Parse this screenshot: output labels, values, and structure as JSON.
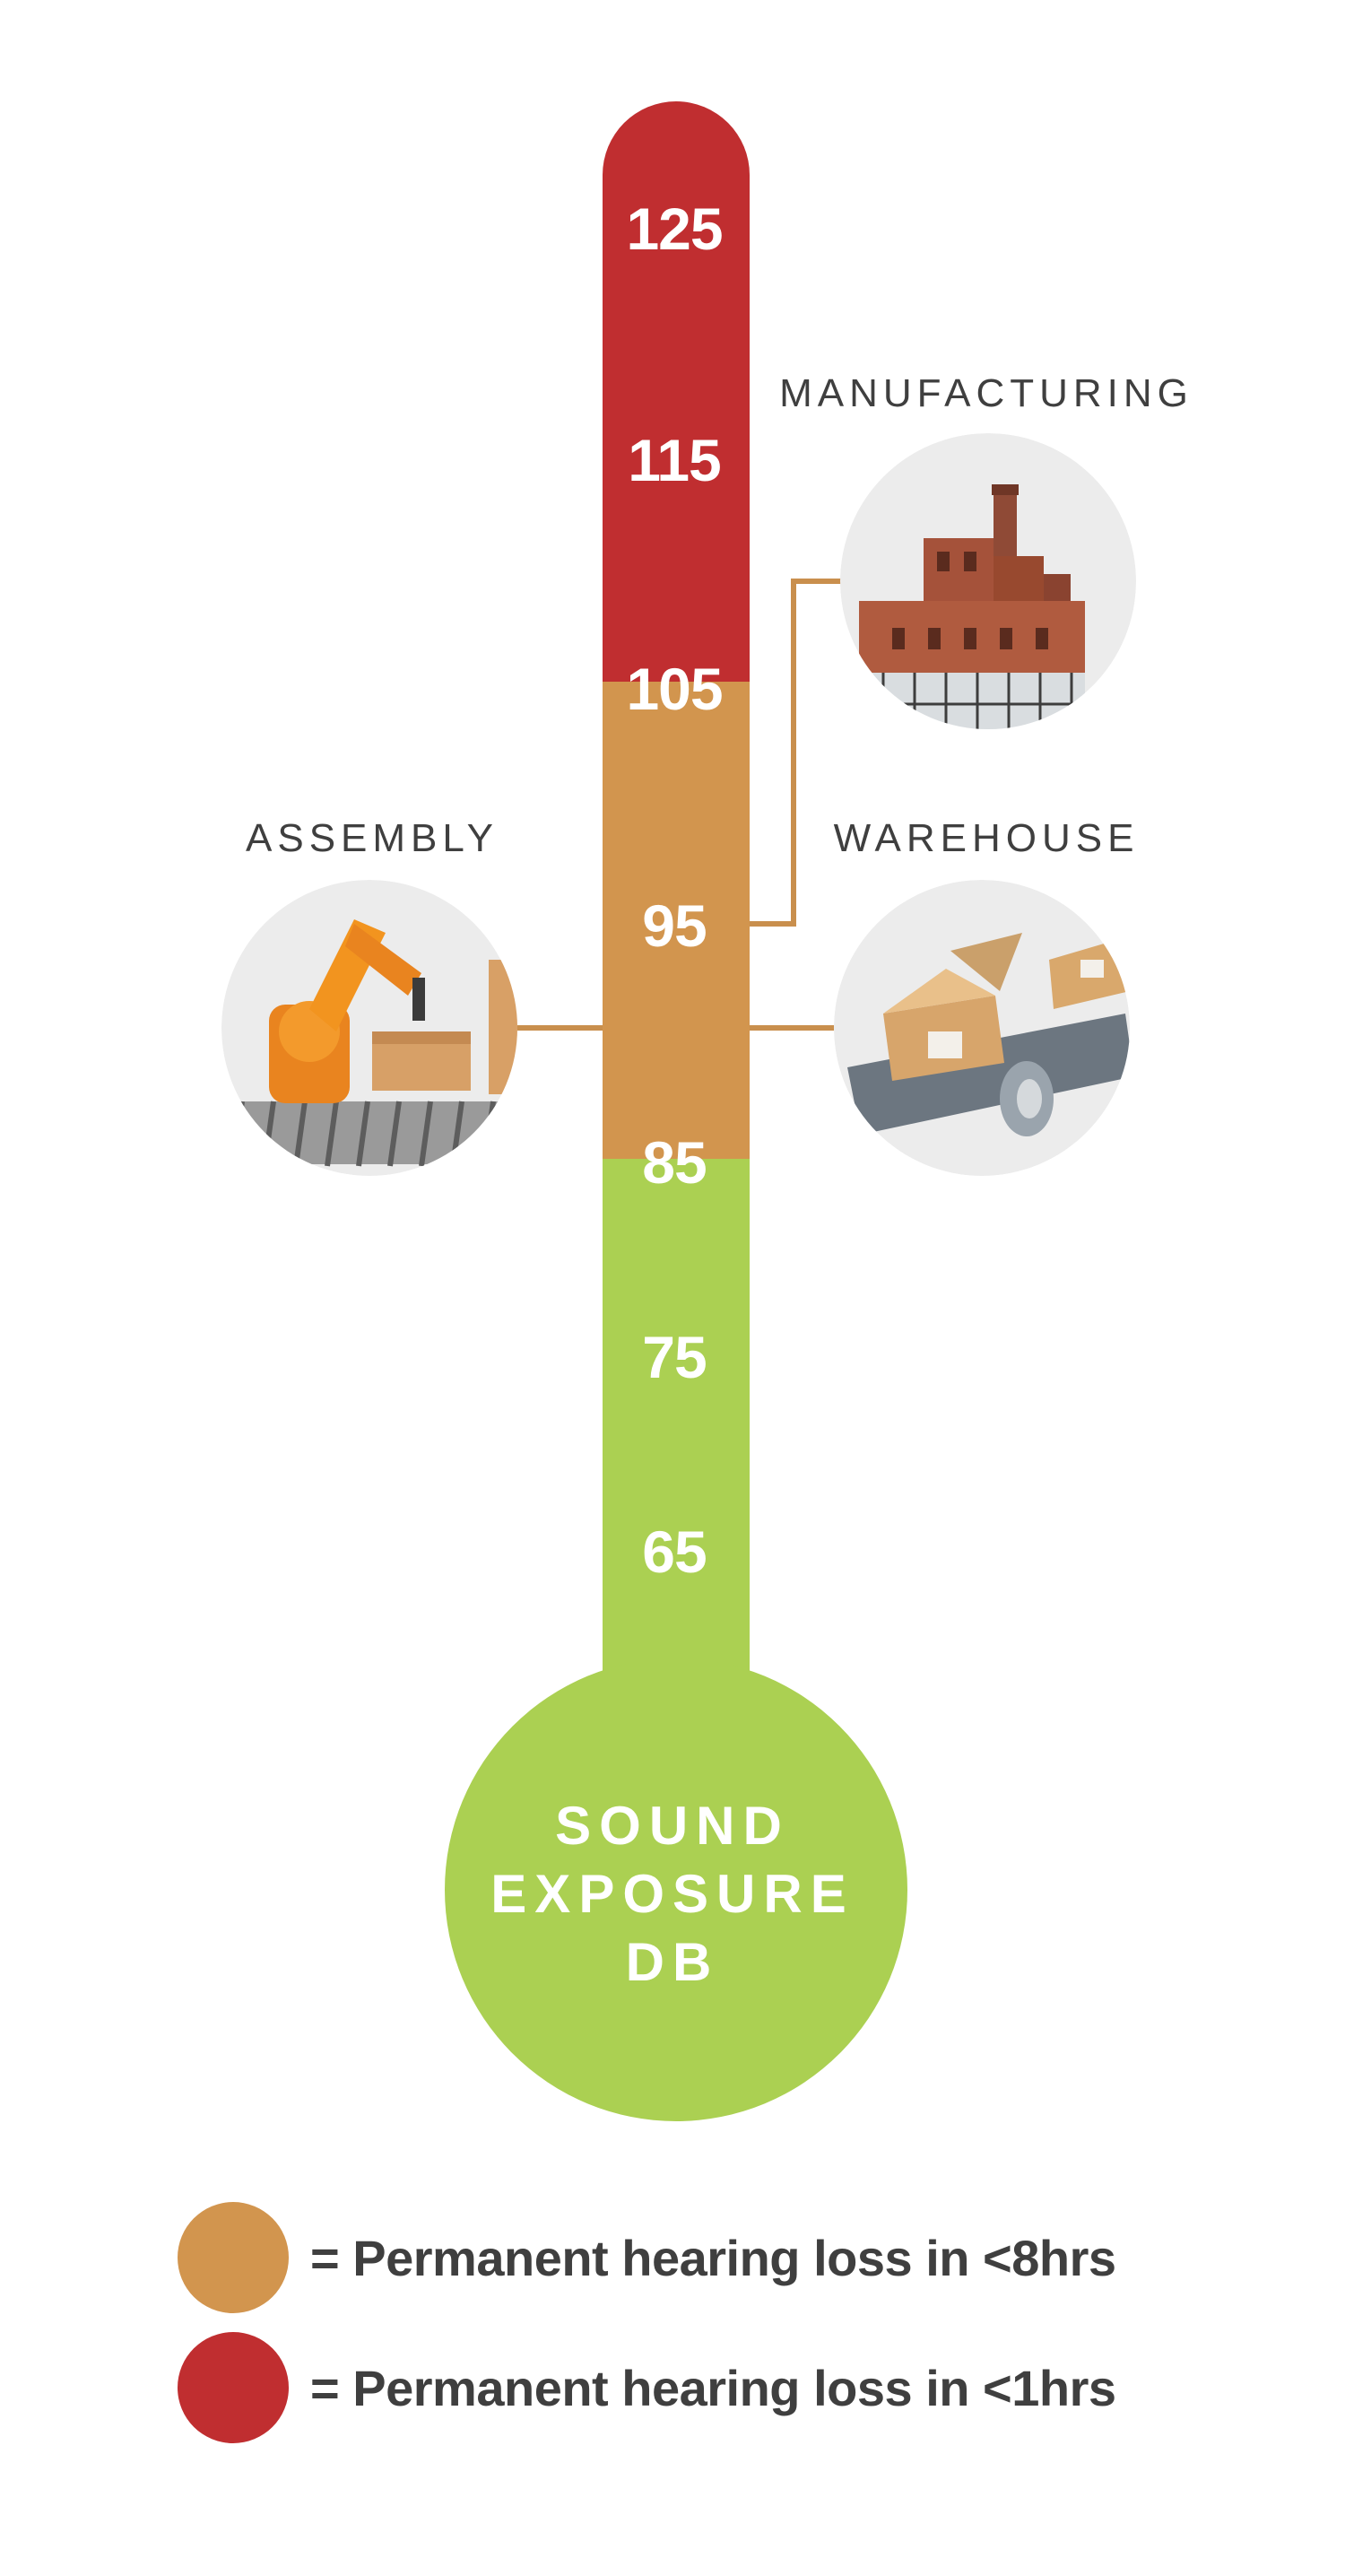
{
  "colors": {
    "red": "#c02e30",
    "orange": "#d2954e",
    "green": "#abd052",
    "connector": "#c98f4d",
    "text_dark": "#3f3f3f",
    "white": "#ffffff"
  },
  "thermometer": {
    "ticks": [
      "125",
      "115",
      "105",
      "95",
      "85",
      "75",
      "65"
    ],
    "bands": [
      {
        "color": "red",
        "from_db": "105",
        "to_db": "125+"
      },
      {
        "color": "orange",
        "from_db": "85",
        "to_db": "105"
      },
      {
        "color": "green",
        "from_db": "65-",
        "to_db": "85"
      }
    ],
    "bulb_lines": [
      "SOUND",
      "EXPOSURE",
      "DB"
    ]
  },
  "categories": [
    {
      "label": "MANUFACTURING",
      "level_db": 95,
      "icon": "factory-building-icon"
    },
    {
      "label": "ASSEMBLY",
      "level_db": 90,
      "icon": "robot-arm-icon"
    },
    {
      "label": "WAREHOUSE",
      "level_db": 90,
      "icon": "box-conveyor-icon"
    }
  ],
  "legend": [
    {
      "color": "orange",
      "text": "= Permanent hearing loss in <8hrs"
    },
    {
      "color": "red",
      "text": "= Permanent hearing loss in <1hrs"
    }
  ]
}
